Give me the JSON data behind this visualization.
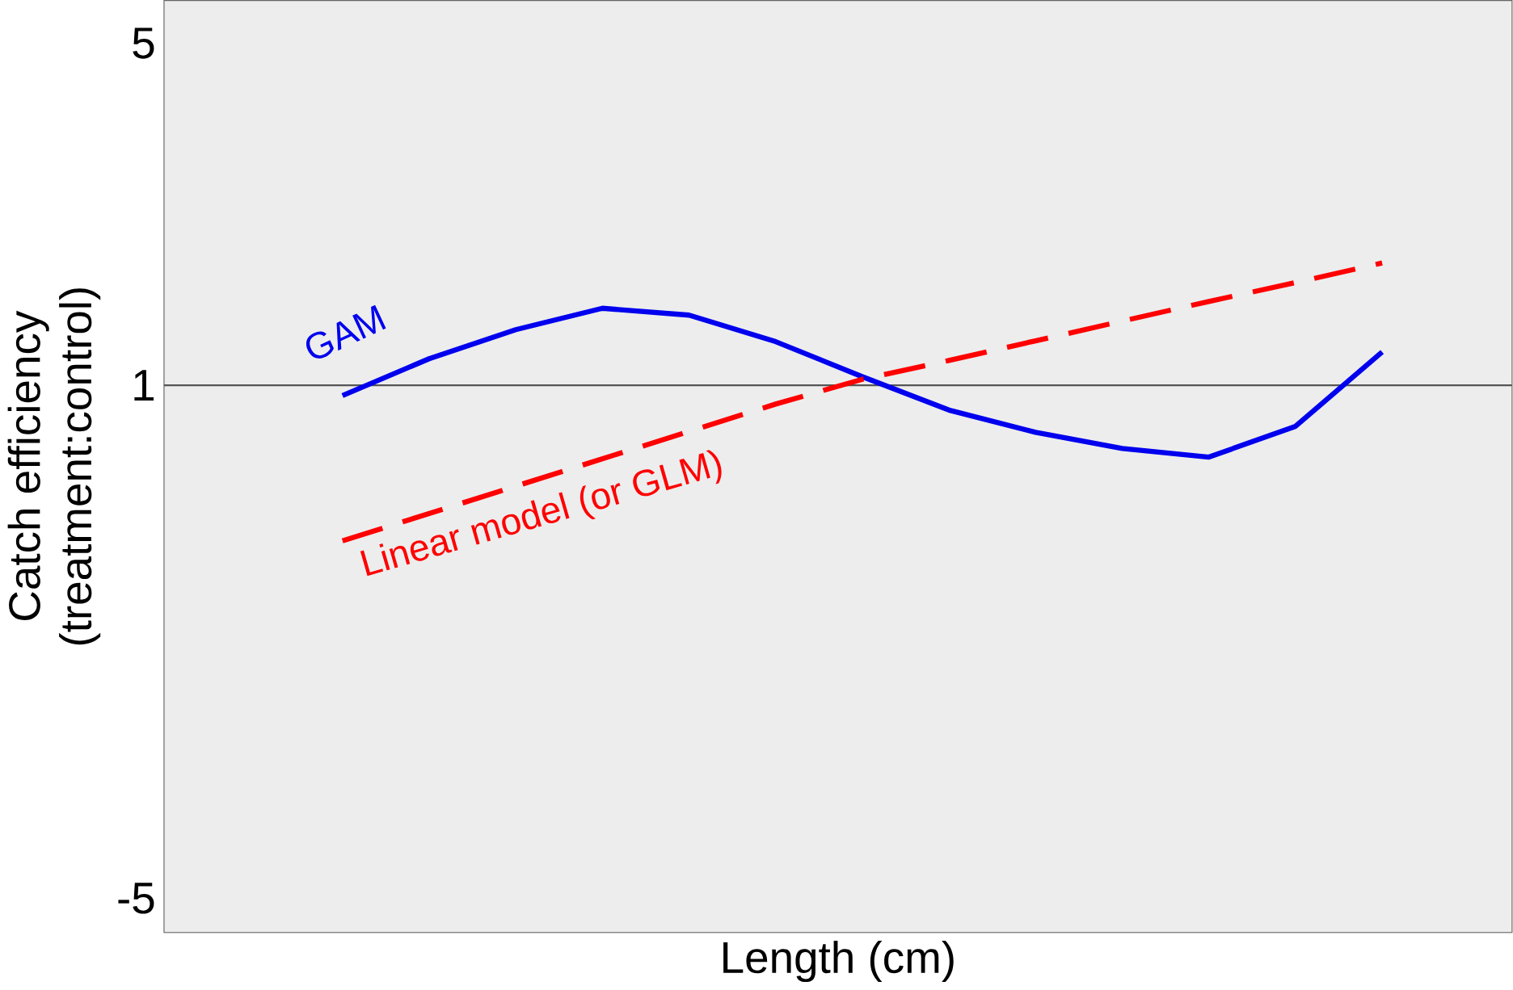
{
  "chart_data": {
    "type": "line",
    "xlabel": "Length (cm)",
    "ylabel": "Catch efficiency\n(treatment:control)",
    "categories": [
      null,
      null,
      null,
      null,
      null,
      null,
      null,
      null,
      null,
      null,
      null,
      null,
      null
    ],
    "ylim": [
      -5.4,
      5.5
    ],
    "yticks": [
      5,
      1,
      -5
    ],
    "series": [
      {
        "name": "GAM",
        "color": "#0000ee",
        "line_style": "solid",
        "values": [
          0.88,
          1.31,
          1.65,
          1.9,
          1.82,
          1.51,
          1.1,
          0.71,
          0.45,
          0.26,
          0.16,
          0.52,
          1.39
        ]
      },
      {
        "name": "Linear model (or GLM)",
        "color": "#ff0000",
        "line_style": "dashed",
        "values": [
          -0.82,
          -0.5,
          -0.18,
          0.14,
          0.46,
          0.78,
          1.07,
          1.29,
          1.52,
          1.75,
          1.98,
          2.2,
          2.43
        ]
      }
    ],
    "ref_lines": [
      {
        "axis": "y",
        "value": 1,
        "color": "#555555"
      }
    ],
    "grid": false,
    "tick_labels": "y"
  }
}
